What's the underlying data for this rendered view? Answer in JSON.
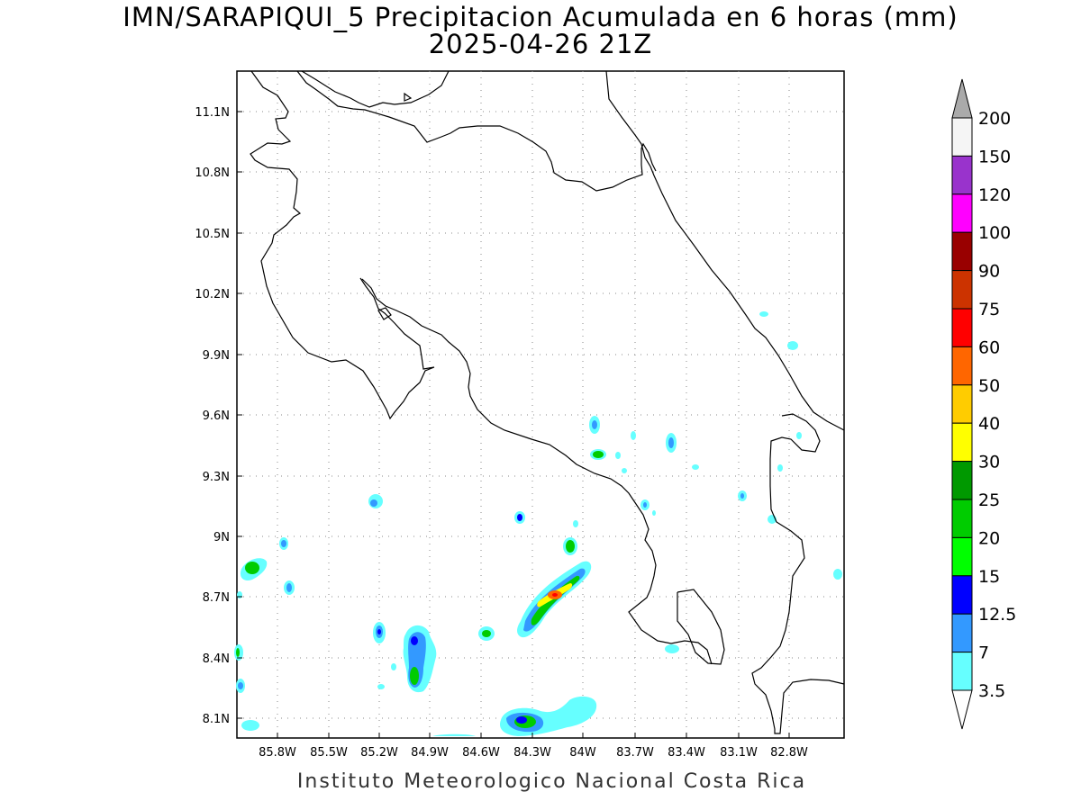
{
  "title_line1": "IMN/SARAPIQUI_5 Precipitacion Acumulada en 6 horas (mm)",
  "title_line2": "2025-04-26 21Z",
  "credit": "Instituto Meteorologico Nacional Costa Rica",
  "map": {
    "lon_range": [
      -86.0,
      -83.0
    ],
    "lat_range": [
      8.0,
      11.3
    ],
    "grid": true,
    "x_tick_labels": [
      "85.8W",
      "85.5W",
      "85.2W",
      "84.9W",
      "84.6W",
      "84.3W",
      "84W",
      "83.7W",
      "83.4W",
      "83.1W",
      "82.8W"
    ],
    "y_tick_labels": [
      "11.1N",
      "10.8N",
      "10.5N",
      "10.2N",
      "9.9N",
      "9.6N",
      "9.3N",
      "9N",
      "8.7N",
      "8.4N",
      "8.1N"
    ]
  },
  "colorbar": {
    "labels": [
      "200",
      "150",
      "120",
      "100",
      "90",
      "75",
      "60",
      "50",
      "40",
      "30",
      "25",
      "20",
      "15",
      "12.5",
      "7",
      "3.5"
    ],
    "colors": [
      "#aaaaaa",
      "#f5f5f5",
      "#9933cc",
      "#ff00ff",
      "#990000",
      "#cc3300",
      "#ff0000",
      "#ff6600",
      "#ffcc00",
      "#ffff00",
      "#009900",
      "#00cc00",
      "#00ff00",
      "#0000ff",
      "#3399ff",
      "#66ffff",
      "#ffffff"
    ]
  },
  "precip_legend_colors": {
    "light": "#66ffff",
    "moderate": "#3399ff",
    "blue": "#0000ff",
    "green_light": "#00ff00",
    "green": "#00cc00",
    "yellow": "#ffff00",
    "orange": "#ff6600",
    "red": "#ff0000"
  }
}
